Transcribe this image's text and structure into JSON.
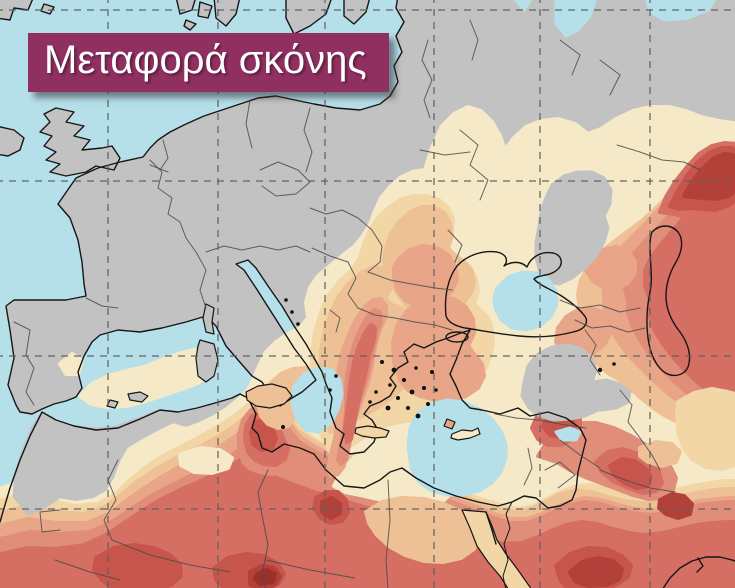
{
  "banner": {
    "title": "Μεταφορά σκόνης",
    "background_color": "#903061",
    "text_color": "#ffffff"
  },
  "map": {
    "palette": {
      "sea": "#b5dfe9",
      "land": "#c2c2c2",
      "coastline": "#161616",
      "country_border": "#4a4a4a",
      "gridline": "#5f5f5f",
      "island_speck": "#101010"
    },
    "dust_scale": [
      "#f5e9c8",
      "#f2d6a6",
      "#eec096",
      "#e8a588",
      "#e08d7a",
      "#d56e63",
      "#c8554c",
      "#b2413a",
      "#9c312c",
      "#862420"
    ],
    "grid": {
      "vertical_x": [
        108,
        218,
        325,
        434,
        540,
        650
      ],
      "horizontal_y": [
        10,
        181,
        356,
        509
      ]
    }
  }
}
